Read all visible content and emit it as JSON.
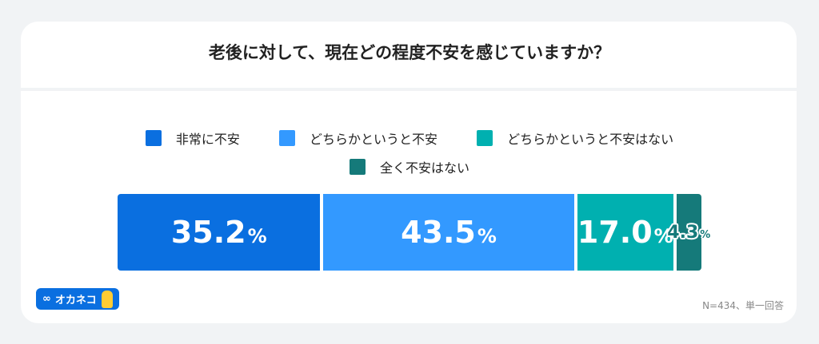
{
  "chart_data": {
    "type": "bar",
    "orientation": "horizontal-stacked",
    "title": "老後に対して、現在どの程度不安を感じていますか？",
    "categories": [
      "非常に不安",
      "どちらかというと不安",
      "どちらかというと不安はない",
      "全く不安はない"
    ],
    "values": [
      35.2,
      43.5,
      17.0,
      4.3
    ],
    "labels": [
      "35.2",
      "43.5",
      "17.0",
      "4.3"
    ],
    "unit": "%",
    "colors": [
      "#0a6fe0",
      "#3399ff",
      "#00b0b0",
      "#157a7a"
    ],
    "legend": "top",
    "note": "N=434、単一回答"
  },
  "logo": {
    "text": "オカネコ",
    "icon": "infinity-icon"
  }
}
